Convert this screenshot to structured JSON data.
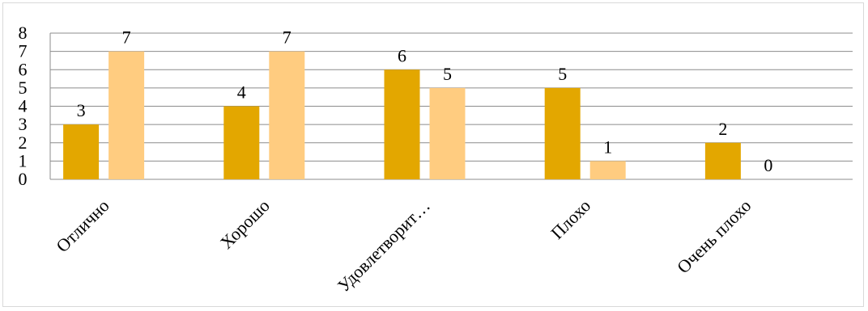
{
  "chart_data": {
    "type": "bar",
    "categories": [
      "Отлично",
      "Хорошо",
      "Удовлетворит…",
      "Плохо",
      "Очень плохо"
    ],
    "series": [
      {
        "values": [
          3,
          4,
          6,
          5,
          2
        ],
        "color": "#e3a700"
      },
      {
        "values": [
          7,
          7,
          5,
          1,
          0
        ],
        "color": "#ffcc80"
      }
    ],
    "ylim": [
      0,
      8
    ],
    "yticks": [
      "0",
      "1",
      "2",
      "3",
      "4",
      "5",
      "6",
      "7",
      "8"
    ],
    "grid": true,
    "legend": "none",
    "data_labels": true
  }
}
